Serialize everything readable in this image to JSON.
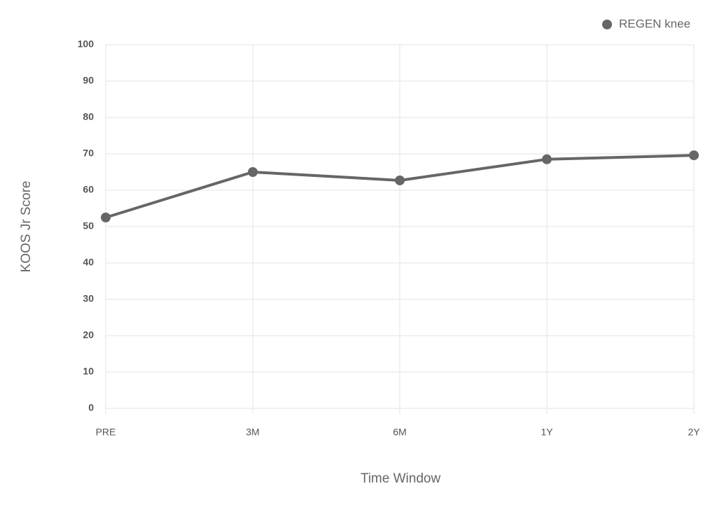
{
  "chart_data": {
    "type": "line",
    "x_label": "Time Window",
    "y_label": "KOOS Jr Score",
    "categories": [
      "PRE",
      "3M",
      "6M",
      "1Y",
      "2Y"
    ],
    "series": [
      {
        "name": "REGEN knee",
        "color": "#666666",
        "values": [
          52.5,
          65,
          62.7,
          68.5,
          69.6
        ]
      }
    ],
    "ylim": [
      0,
      100
    ],
    "yticks": [
      0,
      10,
      20,
      30,
      40,
      50,
      60,
      70,
      80,
      90,
      100
    ],
    "grid": true,
    "legend": "top-right"
  }
}
